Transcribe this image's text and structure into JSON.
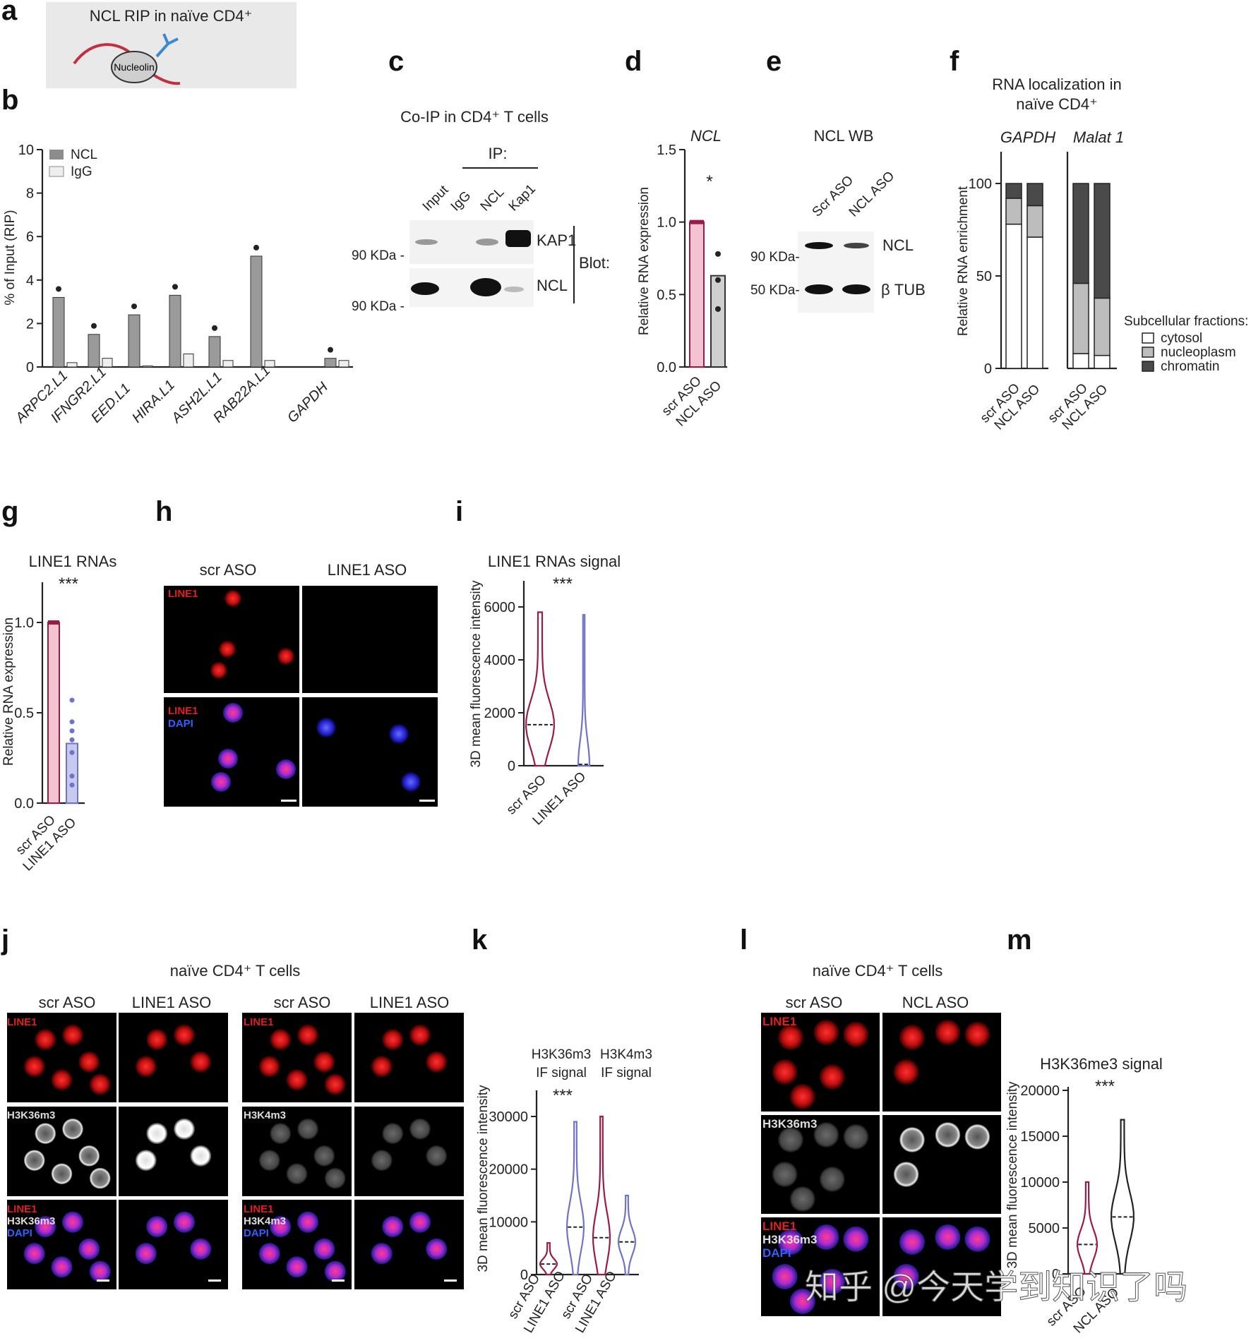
{
  "panel_letters": [
    "a",
    "b",
    "c",
    "d",
    "e",
    "f",
    "g",
    "h",
    "i",
    "j",
    "k",
    "l",
    "m"
  ],
  "a": {
    "title": "NCL RIP in naïve CD4⁺",
    "protein": "Nucleolin"
  },
  "b": {
    "ylabel": "% of Input (RIP)",
    "yticks": [
      "0",
      "2",
      "4",
      "6",
      "8",
      "10"
    ],
    "legend": [
      "NCL",
      "IgG"
    ],
    "categories": [
      "ARPC2.L1",
      "IFNGR2.L1",
      "EED.L1",
      "HIRA.L1",
      "ASH2L.L1",
      "RAB22A.L1",
      "GAPDH"
    ]
  },
  "c": {
    "title": "Co-IP in CD4⁺ T cells",
    "ip": "IP:",
    "lanes": [
      "Input",
      "IgG",
      "NCL",
      "Kap1"
    ],
    "mw": [
      "90 KDa -",
      "90 KDa -"
    ],
    "bands": [
      "KAP1",
      "NCL"
    ],
    "blot": "Blot:"
  },
  "d": {
    "title": "NCL",
    "ylabel": "Relative RNA expression",
    "yticks": [
      "0.0",
      "0.5",
      "1.0",
      "1.5"
    ],
    "sig": "*",
    "xticks": [
      "scr ASO",
      "NCL ASO"
    ]
  },
  "e": {
    "title": "NCL WB",
    "lanes": [
      "Scr ASO",
      "NCL ASO"
    ],
    "mw": [
      "90 KDa-",
      "50 KDa-"
    ],
    "bands": [
      "NCL",
      "β TUB"
    ]
  },
  "f": {
    "title1": "RNA localization in",
    "title2": "naïve CD4⁺",
    "genes": [
      "GAPDH",
      "Malat 1"
    ],
    "ylabel": "Relative RNA enrichment",
    "yticks": [
      "0",
      "50",
      "100"
    ],
    "xticks": [
      "scr ASO",
      "NCL ASO",
      "scr ASO",
      "NCL ASO"
    ],
    "legend_title": "Subcellular fractions:",
    "legend": [
      "cytosol",
      "nucleoplasm",
      "chromatin"
    ]
  },
  "g": {
    "title": "LINE1 RNAs",
    "sig": "***",
    "ylabel": "Relative RNA expression",
    "yticks": [
      "0.0",
      "0.5",
      "1.0"
    ],
    "xticks": [
      "scr ASO",
      "LINE1 ASO"
    ]
  },
  "h": {
    "cols": [
      "scr ASO",
      "LINE1 ASO"
    ],
    "row1": "LINE1",
    "row2a": "LINE1",
    "row2b": "DAPI"
  },
  "i": {
    "title": "LINE1 RNAs signal",
    "sig": "***",
    "ylabel": "3D mean fluorescence intensity",
    "yticks": [
      "0",
      "2000",
      "4000",
      "6000"
    ],
    "xticks": [
      "scr ASO",
      "LINE1 ASO"
    ]
  },
  "j": {
    "title": "naïve CD4⁺ T cells",
    "cols": [
      "scr ASO",
      "LINE1 ASO",
      "scr ASO",
      "LINE1 ASO"
    ],
    "rowA": [
      "LINE1",
      "H3K36m3",
      "LINE1",
      "H3K36m3",
      "DAPI"
    ],
    "rowB": [
      "LINE1",
      "H3K4m3",
      "LINE1",
      "H3K4m3",
      "DAPI"
    ]
  },
  "k": {
    "title1a": "H3K36m3",
    "title1b": "IF signal",
    "title2a": "H3K4m3",
    "title2b": "IF signal",
    "sig": "***",
    "ylabel": "3D mean fluorescence intensity",
    "yticks": [
      "0",
      "10000",
      "20000",
      "30000"
    ],
    "xticks": [
      "scr ASO",
      "LINE1 ASO",
      "scr ASO",
      "LINE1 ASO"
    ]
  },
  "l": {
    "title": "naïve CD4⁺ T cells",
    "cols": [
      "scr ASO",
      "NCL ASO"
    ],
    "rows": [
      "LINE1",
      "H3K36m3",
      "LINE1",
      "H3K36m3",
      "DAPI"
    ]
  },
  "m": {
    "title": "H3K36me3 signal",
    "sig": "***",
    "ylabel": "3D mean fluorescence intensity",
    "yticks": [
      "0",
      "5000",
      "10000",
      "15000",
      "20000"
    ],
    "xticks": [
      "scr ASO",
      "NCL ASO"
    ]
  },
  "watermark": "知乎 @今天学到知识了吗",
  "colors": {
    "scr": "#9b1b45",
    "scr_fill": "#f2c4d1",
    "line1": "#6e73c8",
    "line1_fill": "#c7c9ee",
    "gray": "#8c8c8c",
    "dark": "#4a4a4a",
    "light": "#bdbdbd"
  },
  "chart_data": [
    {
      "type": "bar",
      "panel": "b",
      "ylabel": "% of Input (RIP)",
      "ylim": [
        0,
        10
      ],
      "categories": [
        "ARPC2.L1",
        "IFNGR2.L1",
        "EED.L1",
        "HIRA.L1",
        "ASH2L.L1",
        "RAB22A.L1",
        "GAPDH"
      ],
      "series": [
        {
          "name": "NCL",
          "values": [
            3.2,
            1.5,
            2.4,
            3.3,
            1.4,
            5.1,
            0.4
          ]
        },
        {
          "name": "IgG",
          "values": [
            0.2,
            0.4,
            0.05,
            0.6,
            0.3,
            0.3,
            0.3
          ]
        }
      ]
    },
    {
      "type": "bar",
      "panel": "d",
      "ylabel": "Relative RNA expression",
      "ylim": [
        0,
        1.5
      ],
      "categories": [
        "scr ASO",
        "NCL ASO"
      ],
      "values": [
        1.0,
        0.63
      ]
    },
    {
      "type": "bar",
      "panel": "f",
      "ylabel": "Relative RNA enrichment",
      "ylim": [
        0,
        100
      ],
      "categories": [
        "GAPDH scr ASO",
        "GAPDH NCL ASO",
        "Malat 1 scr ASO",
        "Malat 1 NCL ASO"
      ],
      "series": [
        {
          "name": "cytosol",
          "values": [
            78,
            71,
            8,
            7
          ]
        },
        {
          "name": "nucleoplasm",
          "values": [
            14,
            17,
            38,
            31
          ]
        },
        {
          "name": "chromatin",
          "values": [
            8,
            12,
            54,
            62
          ]
        }
      ]
    },
    {
      "type": "bar",
      "panel": "g",
      "ylabel": "Relative RNA expression",
      "ylim": [
        0,
        1.0
      ],
      "categories": [
        "scr ASO",
        "LINE1 ASO"
      ],
      "values": [
        1.0,
        0.33
      ]
    },
    {
      "type": "violin",
      "panel": "i",
      "ylabel": "3D mean fluorescence intensity",
      "ylim": [
        0,
        6000
      ],
      "categories": [
        "scr ASO",
        "LINE1 ASO"
      ],
      "medians": [
        1550,
        50
      ]
    },
    {
      "type": "violin",
      "panel": "k",
      "ylabel": "3D mean fluorescence intensity",
      "ylim": [
        0,
        30000
      ],
      "categories": [
        "scr ASO",
        "LINE1 ASO",
        "scr ASO",
        "LINE1 ASO"
      ],
      "medians": [
        2000,
        9000,
        7000,
        6200
      ]
    },
    {
      "type": "violin",
      "panel": "m",
      "ylabel": "3D mean fluorescence intensity",
      "ylim": [
        0,
        20000
      ],
      "categories": [
        "scr ASO",
        "NCL ASO"
      ],
      "medians": [
        3200,
        6200
      ]
    }
  ]
}
